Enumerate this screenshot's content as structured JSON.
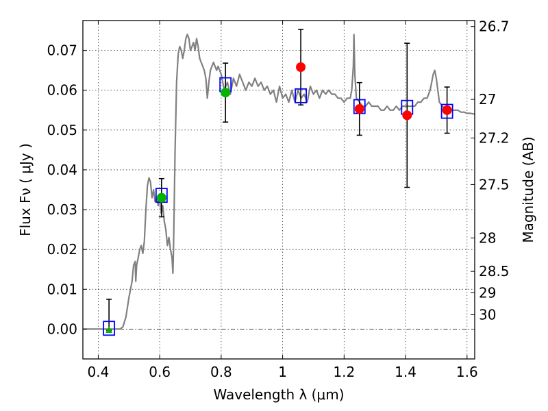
{
  "chart_data": {
    "type": "scatter",
    "xlabel": "Wavelength  λ (μm)",
    "ylabel": "Flux  Fν  ( μJy )",
    "y2label": "Magnitude (AB)",
    "xlim": [
      0.35,
      1.625
    ],
    "ylim": [
      -0.0075,
      0.0775
    ],
    "x_ticks": [
      0.4,
      0.6,
      0.8,
      1.0,
      1.2,
      1.4,
      1.6
    ],
    "x_tick_labels": [
      "0.4",
      "0.6",
      "0.8",
      "1",
      "1.2",
      "1.4",
      "1.6"
    ],
    "y_ticks": [
      0.0,
      0.01,
      0.02,
      0.03,
      0.04,
      0.05,
      0.06,
      0.07
    ],
    "y_tick_labels": [
      "0.00",
      "0.01",
      "0.02",
      "0.03",
      "0.04",
      "0.05",
      "0.06",
      "0.07"
    ],
    "y2_ticks": [
      {
        "label": "26.7",
        "flux": 0.076
      },
      {
        "label": "27",
        "flux": 0.0577
      },
      {
        "label": "27.2",
        "flux": 0.048
      },
      {
        "label": "27.5",
        "flux": 0.0363
      },
      {
        "label": "28",
        "flux": 0.0229
      },
      {
        "label": "28.5",
        "flux": 0.0145
      },
      {
        "label": "29",
        "flux": 0.0091
      },
      {
        "label": "30",
        "flux": 0.0036
      }
    ],
    "grid": true,
    "colors": {
      "spectrum": "#808080",
      "model_box": "#0000ff",
      "detection_green": "#00b400",
      "measurement_red": "#ff0000",
      "errorbar": "#000000",
      "zero_line": "#000000"
    },
    "series": [
      {
        "kind": "model_spectrum",
        "style": "line",
        "points": [
          [
            0.35,
            0.0
          ],
          [
            0.47,
            0.0
          ],
          [
            0.48,
            0.0005
          ],
          [
            0.49,
            0.003
          ],
          [
            0.5,
            0.008
          ],
          [
            0.51,
            0.012
          ],
          [
            0.515,
            0.016
          ],
          [
            0.52,
            0.017
          ],
          [
            0.522,
            0.012
          ],
          [
            0.525,
            0.016
          ],
          [
            0.53,
            0.018
          ],
          [
            0.535,
            0.02
          ],
          [
            0.54,
            0.021
          ],
          [
            0.545,
            0.019
          ],
          [
            0.55,
            0.022
          ],
          [
            0.555,
            0.03
          ],
          [
            0.56,
            0.036
          ],
          [
            0.565,
            0.038
          ],
          [
            0.57,
            0.037
          ],
          [
            0.575,
            0.033
          ],
          [
            0.58,
            0.035
          ],
          [
            0.585,
            0.032
          ],
          [
            0.59,
            0.033
          ],
          [
            0.595,
            0.031
          ],
          [
            0.6,
            0.033
          ],
          [
            0.605,
            0.029
          ],
          [
            0.61,
            0.031
          ],
          [
            0.615,
            0.027
          ],
          [
            0.62,
            0.025
          ],
          [
            0.625,
            0.021
          ],
          [
            0.63,
            0.023
          ],
          [
            0.635,
            0.02
          ],
          [
            0.64,
            0.018
          ],
          [
            0.643,
            0.014
          ],
          [
            0.645,
            0.02
          ],
          [
            0.65,
            0.045
          ],
          [
            0.655,
            0.062
          ],
          [
            0.66,
            0.069
          ],
          [
            0.665,
            0.071
          ],
          [
            0.67,
            0.07
          ],
          [
            0.675,
            0.068
          ],
          [
            0.68,
            0.07
          ],
          [
            0.685,
            0.073
          ],
          [
            0.69,
            0.074
          ],
          [
            0.695,
            0.073
          ],
          [
            0.7,
            0.07
          ],
          [
            0.705,
            0.071
          ],
          [
            0.71,
            0.072
          ],
          [
            0.715,
            0.07
          ],
          [
            0.72,
            0.073
          ],
          [
            0.725,
            0.071
          ],
          [
            0.73,
            0.068
          ],
          [
            0.735,
            0.067
          ],
          [
            0.74,
            0.066
          ],
          [
            0.745,
            0.065
          ],
          [
            0.75,
            0.063
          ],
          [
            0.755,
            0.058
          ],
          [
            0.76,
            0.062
          ],
          [
            0.765,
            0.065
          ],
          [
            0.77,
            0.066
          ],
          [
            0.775,
            0.067
          ],
          [
            0.78,
            0.066
          ],
          [
            0.785,
            0.065
          ],
          [
            0.79,
            0.066
          ],
          [
            0.8,
            0.064
          ],
          [
            0.81,
            0.06
          ],
          [
            0.82,
            0.062
          ],
          [
            0.83,
            0.059
          ],
          [
            0.84,
            0.063
          ],
          [
            0.85,
            0.061
          ],
          [
            0.86,
            0.064
          ],
          [
            0.87,
            0.062
          ],
          [
            0.88,
            0.06
          ],
          [
            0.89,
            0.062
          ],
          [
            0.9,
            0.061
          ],
          [
            0.91,
            0.063
          ],
          [
            0.92,
            0.061
          ],
          [
            0.93,
            0.062
          ],
          [
            0.94,
            0.06
          ],
          [
            0.95,
            0.061
          ],
          [
            0.96,
            0.059
          ],
          [
            0.97,
            0.06
          ],
          [
            0.98,
            0.057
          ],
          [
            0.99,
            0.061
          ],
          [
            1.0,
            0.058
          ],
          [
            1.01,
            0.059
          ],
          [
            1.02,
            0.057
          ],
          [
            1.03,
            0.06
          ],
          [
            1.04,
            0.057
          ],
          [
            1.05,
            0.06
          ],
          [
            1.06,
            0.058
          ],
          [
            1.07,
            0.059
          ],
          [
            1.08,
            0.057
          ],
          [
            1.09,
            0.061
          ],
          [
            1.1,
            0.059
          ],
          [
            1.11,
            0.06
          ],
          [
            1.12,
            0.058
          ],
          [
            1.13,
            0.06
          ],
          [
            1.14,
            0.059
          ],
          [
            1.15,
            0.06
          ],
          [
            1.16,
            0.059
          ],
          [
            1.17,
            0.059
          ],
          [
            1.18,
            0.058
          ],
          [
            1.19,
            0.058
          ],
          [
            1.2,
            0.057
          ],
          [
            1.21,
            0.058
          ],
          [
            1.22,
            0.058
          ],
          [
            1.225,
            0.06
          ],
          [
            1.23,
            0.066
          ],
          [
            1.232,
            0.074
          ],
          [
            1.235,
            0.064
          ],
          [
            1.24,
            0.058
          ],
          [
            1.25,
            0.057
          ],
          [
            1.26,
            0.056
          ],
          [
            1.27,
            0.056
          ],
          [
            1.28,
            0.057
          ],
          [
            1.29,
            0.056
          ],
          [
            1.3,
            0.056
          ],
          [
            1.31,
            0.056
          ],
          [
            1.32,
            0.055
          ],
          [
            1.33,
            0.055
          ],
          [
            1.34,
            0.056
          ],
          [
            1.35,
            0.055
          ],
          [
            1.36,
            0.055
          ],
          [
            1.37,
            0.056
          ],
          [
            1.38,
            0.055
          ],
          [
            1.39,
            0.056
          ],
          [
            1.4,
            0.056
          ],
          [
            1.41,
            0.056
          ],
          [
            1.42,
            0.056
          ],
          [
            1.43,
            0.056
          ],
          [
            1.44,
            0.057
          ],
          [
            1.45,
            0.057
          ],
          [
            1.46,
            0.058
          ],
          [
            1.47,
            0.058
          ],
          [
            1.48,
            0.06
          ],
          [
            1.485,
            0.062
          ],
          [
            1.49,
            0.064
          ],
          [
            1.495,
            0.065
          ],
          [
            1.5,
            0.063
          ],
          [
            1.505,
            0.06
          ],
          [
            1.51,
            0.057
          ],
          [
            1.52,
            0.056
          ],
          [
            1.53,
            0.055
          ],
          [
            1.54,
            0.055
          ],
          [
            1.55,
            0.055
          ],
          [
            1.56,
            0.055
          ],
          [
            1.57,
            0.055
          ],
          [
            1.58,
            0.0545
          ],
          [
            1.59,
            0.0545
          ],
          [
            1.6,
            0.0542
          ],
          [
            1.61,
            0.0542
          ],
          [
            1.625,
            0.054
          ]
        ]
      },
      {
        "kind": "model_photometry",
        "style": "open-square",
        "points": [
          [
            0.435,
            0.0002
          ],
          [
            0.606,
            0.0336
          ],
          [
            0.814,
            0.0614
          ],
          [
            1.059,
            0.0586
          ],
          [
            1.25,
            0.0559
          ],
          [
            1.405,
            0.0557
          ],
          [
            1.535,
            0.0547
          ]
        ]
      },
      {
        "kind": "observed_green",
        "style": "filled-circle",
        "points": [
          {
            "x": 0.606,
            "y": 0.033,
            "yerr": 0.0048
          },
          {
            "x": 0.814,
            "y": 0.0594,
            "yerr": 0.0074
          }
        ]
      },
      {
        "kind": "observed_green_upper_limit",
        "style": "filled-triangle",
        "points": [
          {
            "x": 0.435,
            "y": -0.0003,
            "yerr_upper": 0.0078
          }
        ]
      },
      {
        "kind": "observed_red",
        "style": "filled-circle",
        "points": [
          {
            "x": 1.059,
            "y": 0.0658,
            "yerr": 0.0095
          },
          {
            "x": 1.25,
            "y": 0.0553,
            "yerr": 0.0066
          },
          {
            "x": 1.405,
            "y": 0.0537,
            "yerr": 0.0181
          },
          {
            "x": 1.535,
            "y": 0.055,
            "yerr": 0.0058
          }
        ]
      }
    ]
  }
}
